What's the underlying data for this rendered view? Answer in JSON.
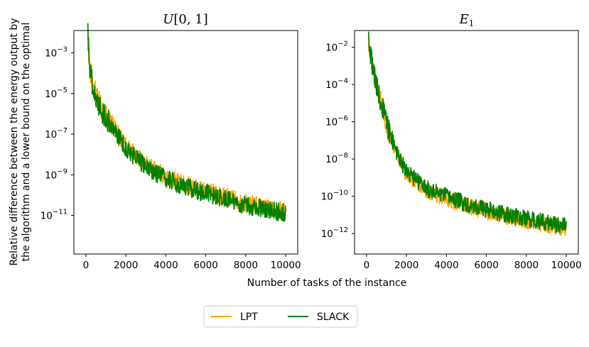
{
  "figure": {
    "ylabel_line1": "Relative difference between the energy output by",
    "ylabel_line2": "the algorithm and a lower bound on the optimal",
    "xlabel": "Number of tasks of the instance"
  },
  "legend": {
    "placement": "bottom-center",
    "entries": [
      {
        "name": "LPT",
        "color": "#FFA500"
      },
      {
        "name": "SLACK",
        "color": "#008000"
      }
    ]
  },
  "chart_data": [
    {
      "type": "line",
      "title_script": "U",
      "title_rest": "[0, 1]",
      "xlim": [
        -600,
        10600
      ],
      "ylim_log10": [
        -12.9,
        -1.9
      ],
      "yscale": "log",
      "xticks": [
        0,
        2000,
        4000,
        6000,
        8000,
        10000
      ],
      "yticks_exp": [
        -11,
        -9,
        -7,
        -5,
        -3
      ],
      "ytick_prefix": "10",
      "x_range": [
        100,
        10000
      ],
      "series": [
        {
          "name": "LPT",
          "color": "#FFA500",
          "trend_x": [
            100,
            200,
            400,
            700,
            1000,
            1500,
            2000,
            3000,
            4000,
            5000,
            6000,
            7000,
            8000,
            9000,
            10000
          ],
          "trend_y_exp": [
            -2.1,
            -3.8,
            -4.8,
            -5.6,
            -6.1,
            -6.8,
            -7.6,
            -8.5,
            -9.1,
            -9.5,
            -9.8,
            -10.1,
            -10.4,
            -10.6,
            -10.8
          ]
        },
        {
          "name": "SLACK",
          "color": "#008000",
          "trend_x": [
            100,
            200,
            400,
            700,
            1000,
            1500,
            2000,
            3000,
            4000,
            5000,
            6000,
            7000,
            8000,
            9000,
            10000
          ],
          "trend_y_exp": [
            -2.1,
            -3.8,
            -4.9,
            -5.7,
            -6.2,
            -6.9,
            -7.7,
            -8.6,
            -9.2,
            -9.6,
            -9.9,
            -10.2,
            -10.5,
            -10.7,
            -10.9
          ]
        }
      ]
    },
    {
      "type": "line",
      "title_script": "E",
      "title_rest": "1",
      "xlim": [
        -600,
        10600
      ],
      "ylim_log10": [
        -13.1,
        -1.1
      ],
      "yscale": "log",
      "xticks": [
        0,
        2000,
        4000,
        6000,
        8000,
        10000
      ],
      "yticks_exp": [
        -12,
        -10,
        -8,
        -6,
        -4,
        -2
      ],
      "ytick_prefix": "10",
      "x_range": [
        100,
        10000
      ],
      "series": [
        {
          "name": "LPT",
          "color": "#FFA500",
          "trend_x": [
            100,
            200,
            400,
            700,
            1000,
            1500,
            2000,
            3000,
            4000,
            5000,
            6000,
            7000,
            8000,
            9000,
            10000
          ],
          "trend_y_exp": [
            -1.6,
            -2.4,
            -3.6,
            -4.8,
            -6.2,
            -7.7,
            -8.8,
            -9.7,
            -10.1,
            -10.5,
            -10.8,
            -11.1,
            -11.3,
            -11.5,
            -11.7
          ]
        },
        {
          "name": "SLACK",
          "color": "#008000",
          "trend_x": [
            100,
            200,
            400,
            700,
            1000,
            1500,
            2000,
            3000,
            4000,
            5000,
            6000,
            7000,
            8000,
            9000,
            10000
          ],
          "trend_y_exp": [
            -1.6,
            -2.4,
            -3.6,
            -4.8,
            -6.1,
            -7.6,
            -8.7,
            -9.6,
            -10.0,
            -10.4,
            -10.7,
            -11.0,
            -11.2,
            -11.4,
            -11.6
          ]
        }
      ]
    }
  ]
}
